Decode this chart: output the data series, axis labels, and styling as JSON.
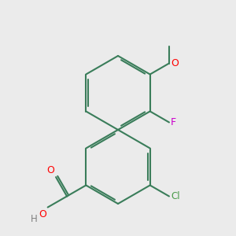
{
  "background_color": "#ebebeb",
  "bond_color": "#3a7d5a",
  "colors": {
    "O": "#ff0000",
    "F": "#cc00cc",
    "Cl": "#4a9a4a",
    "C": "#3a7d5a",
    "H": "#808080"
  },
  "figsize": [
    3.0,
    3.0
  ],
  "dpi": 100,
  "lw": 1.5
}
